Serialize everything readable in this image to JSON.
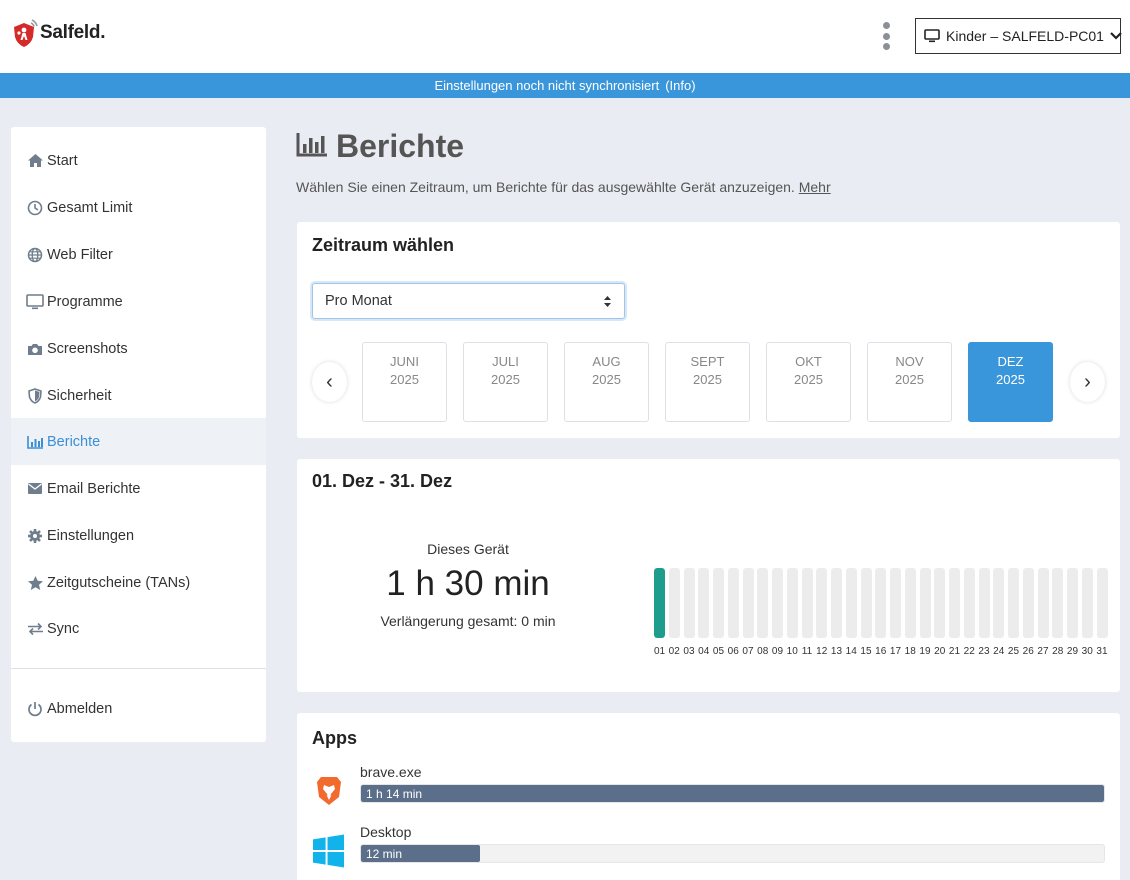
{
  "header": {
    "logo_text": "Salfeld.",
    "device_selector": "Kinder – SALFELD-PC01"
  },
  "sync_banner": {
    "text": "Einstellungen noch nicht synchronisiert",
    "info_link": "(Info)"
  },
  "sidebar": {
    "items": [
      {
        "label": "Start",
        "icon": "home-icon"
      },
      {
        "label": "Gesamt Limit",
        "icon": "clock-icon"
      },
      {
        "label": "Web Filter",
        "icon": "globe-icon"
      },
      {
        "label": "Programme",
        "icon": "monitor-icon"
      },
      {
        "label": "Screenshots",
        "icon": "camera-icon"
      },
      {
        "label": "Sicherheit",
        "icon": "shield-icon"
      },
      {
        "label": "Berichte",
        "icon": "bar-chart-icon",
        "active": true
      },
      {
        "label": "Email Berichte",
        "icon": "envelope-icon"
      },
      {
        "label": "Einstellungen",
        "icon": "gear-icon"
      },
      {
        "label": "Zeitgutscheine (TANs)",
        "icon": "star-icon"
      },
      {
        "label": "Sync",
        "icon": "exchange-icon"
      }
    ],
    "logout": {
      "label": "Abmelden",
      "icon": "power-icon"
    }
  },
  "page": {
    "title": "Berichte",
    "description": "Wählen Sie einen Zeitraum, um Berichte für das ausgewählte Gerät anzuzeigen.",
    "more_link": "Mehr"
  },
  "period_card": {
    "title": "Zeitraum wählen",
    "select_value": "Pro Monat",
    "months": [
      {
        "month": "JUNI",
        "year": "2025"
      },
      {
        "month": "JULI",
        "year": "2025"
      },
      {
        "month": "AUG",
        "year": "2025"
      },
      {
        "month": "SEPT",
        "year": "2025"
      },
      {
        "month": "OKT",
        "year": "2025"
      },
      {
        "month": "NOV",
        "year": "2025"
      },
      {
        "month": "DEZ",
        "year": "2025",
        "selected": true
      }
    ]
  },
  "summary_card": {
    "title": "01. Dez - 31. Dez",
    "device_label": "Dieses Gerät",
    "total_time": "1 h 30 min",
    "extension_label": "Verlängerung gesamt: 0 min",
    "days": [
      "01",
      "02",
      "03",
      "04",
      "05",
      "06",
      "07",
      "08",
      "09",
      "10",
      "11",
      "12",
      "13",
      "14",
      "15",
      "16",
      "17",
      "18",
      "19",
      "20",
      "21",
      "22",
      "23",
      "24",
      "25",
      "26",
      "27",
      "28",
      "29",
      "30",
      "31"
    ],
    "day_fill_fraction": [
      1,
      0,
      0,
      0,
      0,
      0,
      0,
      0,
      0,
      0,
      0,
      0,
      0,
      0,
      0,
      0,
      0,
      0,
      0,
      0,
      0,
      0,
      0,
      0,
      0,
      0,
      0,
      0,
      0,
      0,
      0
    ],
    "bar_color": "#1e9c8c"
  },
  "apps_card": {
    "title": "Apps",
    "apps": [
      {
        "name": "brave.exe",
        "duration": "1 h 14 min",
        "fraction": 1.0,
        "icon": "brave-lion-icon"
      },
      {
        "name": "Desktop",
        "duration": "12 min",
        "fraction": 0.16,
        "icon": "windows-icon"
      }
    ]
  },
  "colors": {
    "accent": "#3a96db",
    "bar_fill": "#5b6f8a",
    "teal": "#1e9c8c"
  }
}
